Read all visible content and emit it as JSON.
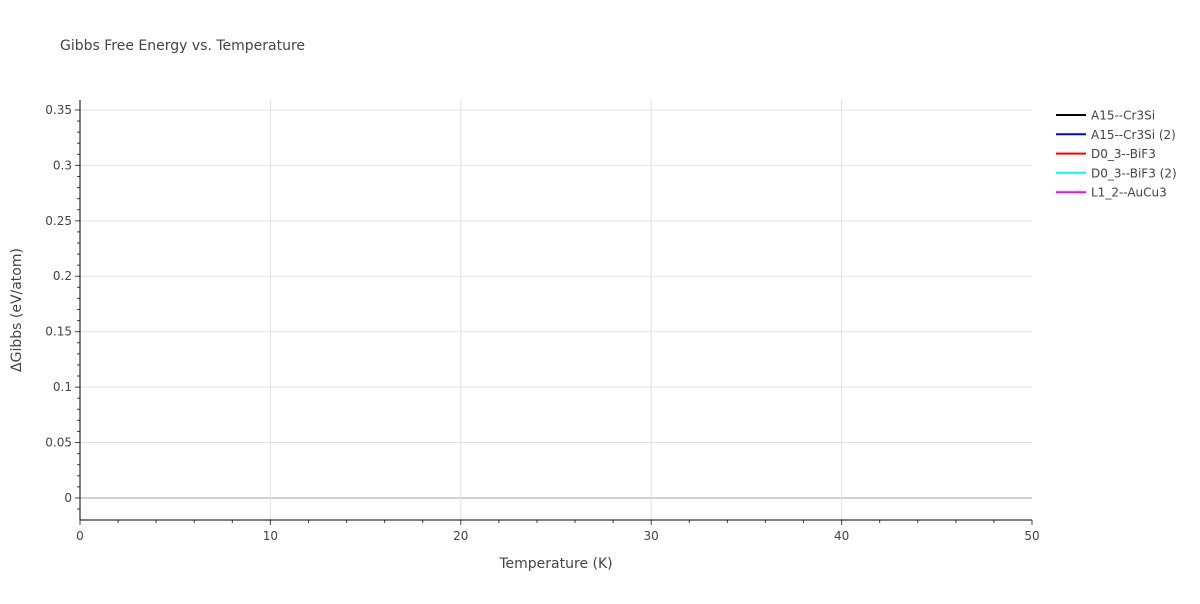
{
  "chart_data": {
    "type": "line",
    "title": "Gibbs Free Energy vs. Temperature",
    "xlabel": "Temperature (K)",
    "ylabel": "ΔGibbs (eV/atom)",
    "xlim": [
      0,
      50
    ],
    "ylim": [
      -0.0199,
      0.359
    ],
    "xticks": [
      0,
      10,
      20,
      30,
      40,
      50
    ],
    "yticks": [
      0,
      0.05,
      0.1,
      0.15,
      0.2,
      0.25,
      0.3,
      0.35
    ],
    "ytick_labels": [
      "0",
      "0.05",
      "0.1",
      "0.15",
      "0.2",
      "0.25",
      "0.3",
      "0.35"
    ],
    "grid": true,
    "legend_position": "top-right",
    "series": [
      {
        "name": "A15--Cr3Si",
        "color": "#000000",
        "x": [],
        "y": []
      },
      {
        "name": "A15--Cr3Si (2)",
        "color": "#0000ff",
        "x": [],
        "y": []
      },
      {
        "name": "D0_3--BiF3",
        "color": "#ff0000",
        "x": [],
        "y": []
      },
      {
        "name": "D0_3--BiF3 (2)",
        "color": "#00ffff",
        "x": [],
        "y": []
      },
      {
        "name": "L1_2--AuCu3",
        "color": "#ff00ff",
        "x": [],
        "y": []
      }
    ]
  }
}
